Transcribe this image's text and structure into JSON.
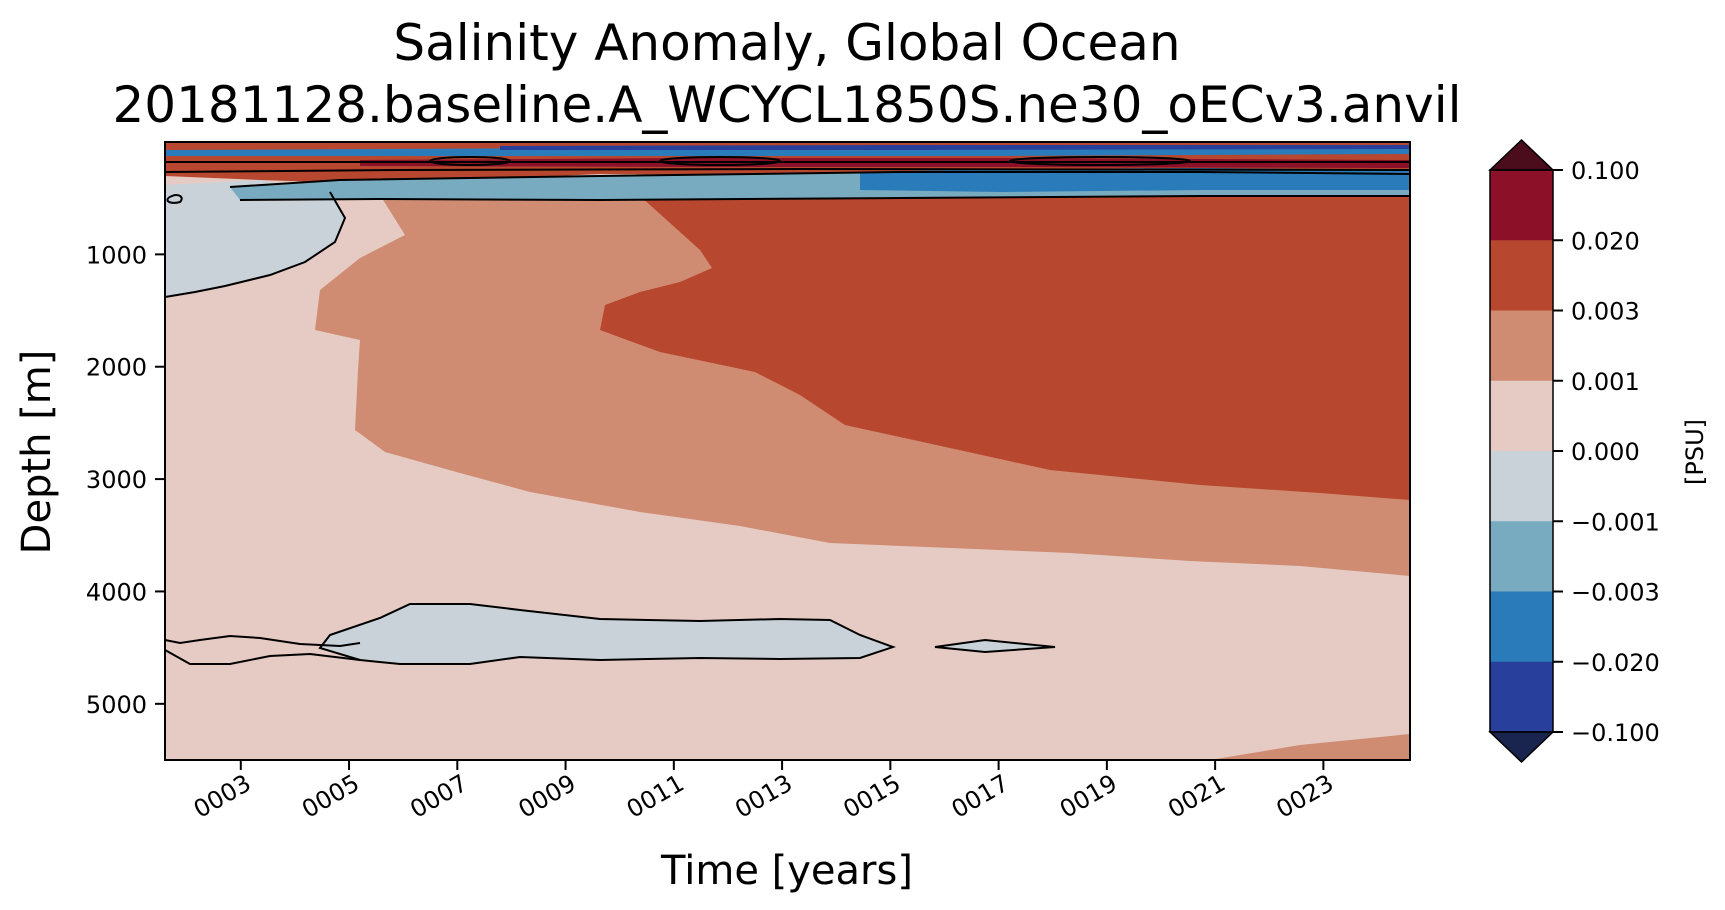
{
  "chart_data": {
    "type": "heatmap",
    "title": "Salinity Anomaly, Global Ocean",
    "subtitle": "20181128.baseline.A_WCYCL1850S.ne30_oECv3.anvil",
    "xlabel": "Time [years]",
    "ylabel": "Depth [m]",
    "xlim": [
      1.6,
      24.6
    ],
    "ylim": [
      5500,
      0
    ],
    "x_ticks": [
      3,
      5,
      7,
      9,
      11,
      13,
      15,
      17,
      19,
      21,
      23
    ],
    "x_tick_labels": [
      "0003",
      "0005",
      "0007",
      "0009",
      "0011",
      "0013",
      "0015",
      "0017",
      "0019",
      "0021",
      "0023"
    ],
    "y_ticks": [
      1000,
      2000,
      3000,
      4000,
      5000
    ],
    "y_tick_labels": [
      "1000",
      "2000",
      "3000",
      "4000",
      "5000"
    ],
    "colorbar": {
      "label": "[PSU]",
      "tick_labels": [
        "0.100",
        "0.020",
        "0.003",
        "0.001",
        "0.000",
        "−0.001",
        "−0.003",
        "−0.020",
        "−0.100"
      ],
      "colors": [
        "#8b1028",
        "#b8472f",
        "#cf8c72",
        "#e5cbc3",
        "#c9d2d9",
        "#78aac0",
        "#2a7bba",
        "#283f9c"
      ],
      "extend_max_color": "#4b0d1c",
      "extend_min_color": "#19254f"
    },
    "regions": [
      {
        "level": "0.000 to 0.001",
        "color": "#e5cbc3",
        "description": "background below 500 m"
      },
      {
        "level": "0.001 to 0.003",
        "color": "#cf8c72",
        "description": "mid-depth band spreading with time from year ~4"
      },
      {
        "level": "0.003 to 0.020",
        "color": "#b8472f",
        "description": "main positive anomaly 500-3200 m after year ~10; near-surface band"
      },
      {
        "level": "0.020 to 0.100",
        "color": "#8b1028",
        "description": "thin band near 150-250 m"
      },
      {
        "level": "-0.001 to 0.000",
        "color": "#c9d2d9",
        "description": "upper left (years 1.6-5, 400-1400 m) and patch near 4200-4700 m (years 5-15)"
      },
      {
        "level": "-0.003 to -0.001",
        "color": "#78aac0",
        "description": "thin layer near 450 m"
      },
      {
        "level": "-0.020 to -0.003",
        "color": "#2a7bba",
        "description": "layer 250-450 m, years 12-24"
      }
    ]
  }
}
